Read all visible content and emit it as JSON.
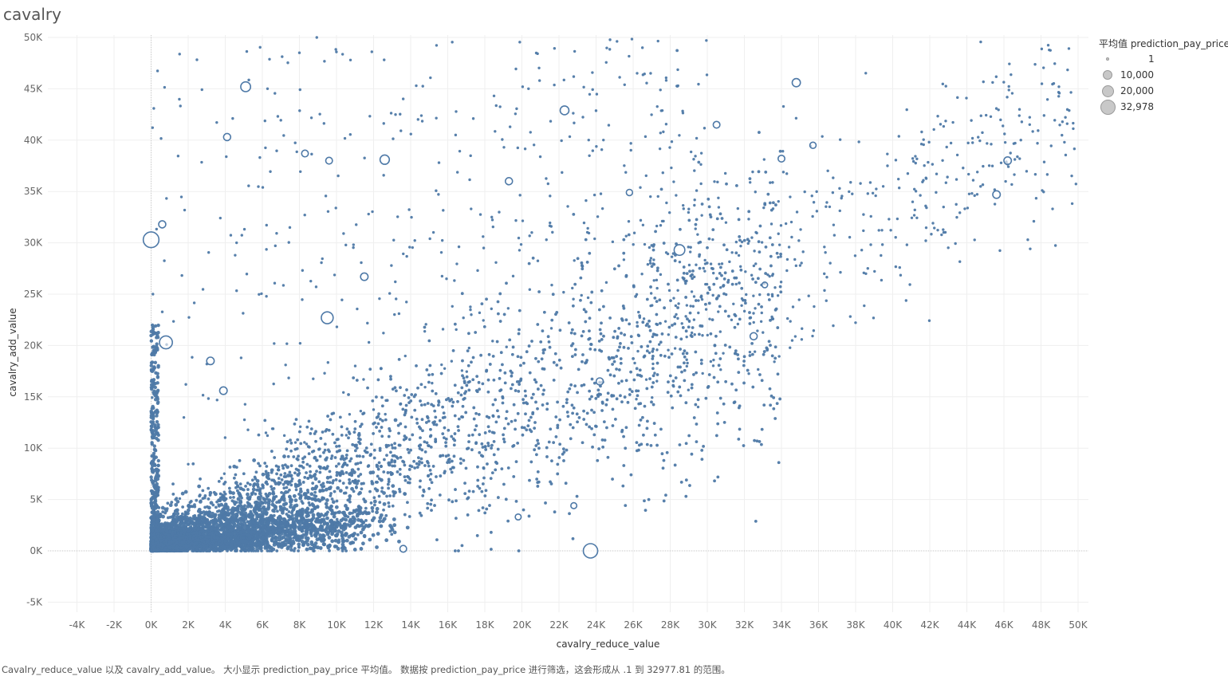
{
  "title": "cavalry",
  "chart_data": {
    "type": "scatter",
    "xlabel": "cavalry_reduce_value",
    "ylabel": "cavalry_add_value",
    "xlim": [
      -5000,
      50500
    ],
    "ylim": [
      -6000,
      50500
    ],
    "x_ticks": [
      -4000,
      -2000,
      0,
      2000,
      4000,
      6000,
      8000,
      10000,
      12000,
      14000,
      16000,
      18000,
      20000,
      22000,
      24000,
      26000,
      28000,
      30000,
      32000,
      34000,
      36000,
      38000,
      40000,
      42000,
      44000,
      46000,
      48000,
      50000
    ],
    "x_tick_labels": [
      "-4K",
      "-2K",
      "0K",
      "2K",
      "4K",
      "6K",
      "8K",
      "10K",
      "12K",
      "14K",
      "16K",
      "18K",
      "20K",
      "22K",
      "24K",
      "26K",
      "28K",
      "30K",
      "32K",
      "34K",
      "36K",
      "38K",
      "40K",
      "42K",
      "44K",
      "46K",
      "48K",
      "50K"
    ],
    "y_ticks": [
      -5000,
      0,
      5000,
      10000,
      15000,
      20000,
      25000,
      30000,
      35000,
      40000,
      45000,
      50000
    ],
    "y_tick_labels": [
      "-5K",
      "0K",
      "5K",
      "10K",
      "15K",
      "20K",
      "25K",
      "30K",
      "35K",
      "40K",
      "45K",
      "50K"
    ],
    "grid": true,
    "marker_color": "#4e79a7",
    "size_encoding": "prediction_pay_price (average)",
    "legend": {
      "title": "平均值 prediction_pay_price",
      "placement": "top-right",
      "entries": [
        {
          "label": "1",
          "value": 1
        },
        {
          "label": "10,000",
          "value": 10000
        },
        {
          "label": "20,000",
          "value": 20000
        },
        {
          "label": "32,978",
          "value": 32978
        }
      ]
    },
    "points": [
      {
        "x": 23700,
        "y": 0,
        "size": 20000
      },
      {
        "x": 0,
        "y": 30300,
        "size": 25000
      },
      {
        "x": 800,
        "y": 20300,
        "size": 15000
      },
      {
        "x": 9500,
        "y": 22700,
        "size": 12000
      },
      {
        "x": 28500,
        "y": 29300,
        "size": 9000
      },
      {
        "x": 5100,
        "y": 45200,
        "size": 7000
      },
      {
        "x": 12600,
        "y": 38100,
        "size": 6000
      },
      {
        "x": 22300,
        "y": 42900,
        "size": 5000
      },
      {
        "x": 34800,
        "y": 45600,
        "size": 4000
      },
      {
        "x": 46200,
        "y": 38000,
        "size": 3000
      },
      {
        "x": 45600,
        "y": 34700,
        "size": 3000
      },
      {
        "x": 32500,
        "y": 20900,
        "size": 2500
      },
      {
        "x": 24200,
        "y": 16500,
        "size": 2500
      },
      {
        "x": 19300,
        "y": 36000,
        "size": 2500
      },
      {
        "x": 4100,
        "y": 40300,
        "size": 2500
      },
      {
        "x": 11500,
        "y": 26700,
        "size": 3000
      },
      {
        "x": 3200,
        "y": 18500,
        "size": 3000
      },
      {
        "x": 3900,
        "y": 15600,
        "size": 3000
      },
      {
        "x": 600,
        "y": 31800,
        "size": 2500
      },
      {
        "x": 9600,
        "y": 38000,
        "size": 2000
      },
      {
        "x": 8300,
        "y": 38700,
        "size": 2000
      },
      {
        "x": 13600,
        "y": 200,
        "size": 2000
      },
      {
        "x": 19800,
        "y": 3300,
        "size": 1200
      },
      {
        "x": 22800,
        "y": 4400,
        "size": 1200
      },
      {
        "x": 34000,
        "y": 38200,
        "size": 2000
      },
      {
        "x": 35700,
        "y": 39500,
        "size": 1500
      },
      {
        "x": 30500,
        "y": 41500,
        "size": 2000
      },
      {
        "x": 33100,
        "y": 25900,
        "size": 1000
      },
      {
        "x": 25800,
        "y": 34900,
        "size": 1500
      }
    ],
    "cloud_note": "dense cloud of thousands of small points concentrated near the origin and along a rising diagonal"
  },
  "caption": "Cavalry_reduce_value 以及 cavalry_add_value。 大小显示 prediction_pay_price 平均值。 数据按 prediction_pay_price 进行筛选，这会形成从 .1 到 32977.81 的范围。"
}
